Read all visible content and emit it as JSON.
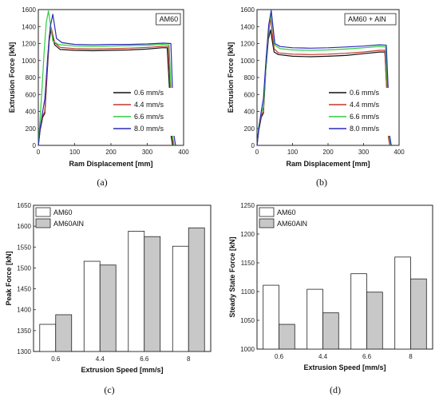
{
  "chart_data": [
    {
      "id": "a",
      "type": "line",
      "caption": "(a)",
      "tag": "AM60",
      "xlabel": "Ram Displacement [mm]",
      "ylabel": "Extrusion Force [kN]",
      "xlim": [
        0,
        400
      ],
      "ylim": [
        0,
        1600
      ],
      "xticks": [
        0,
        100,
        200,
        300,
        400
      ],
      "yticks": [
        0,
        200,
        400,
        600,
        800,
        1000,
        1200,
        1400,
        1600
      ],
      "legend_position": "lower-right",
      "series": [
        {
          "name": "0.6 mm/s",
          "color": "#111111",
          "x": [
            0,
            5,
            12,
            18,
            25,
            30,
            35,
            45,
            60,
            100,
            150,
            200,
            250,
            300,
            340,
            355,
            362,
            366,
            370
          ],
          "y": [
            0,
            180,
            330,
            380,
            900,
            1230,
            1365,
            1185,
            1130,
            1120,
            1115,
            1120,
            1125,
            1135,
            1150,
            1150,
            600,
            100,
            0
          ]
        },
        {
          "name": "4.4 mm/s",
          "color": "#c0392b",
          "x": [
            0,
            5,
            12,
            18,
            25,
            30,
            35,
            45,
            60,
            100,
            150,
            200,
            250,
            300,
            340,
            358,
            364,
            368,
            372
          ],
          "y": [
            0,
            200,
            350,
            400,
            950,
            1280,
            1395,
            1210,
            1155,
            1140,
            1135,
            1140,
            1145,
            1155,
            1165,
            1165,
            600,
            100,
            0
          ]
        },
        {
          "name": "6.6 mm/s",
          "color": "#2ecc40",
          "x": [
            0,
            4,
            10,
            16,
            22,
            28,
            40,
            55,
            100,
            150,
            200,
            250,
            300,
            340,
            360,
            366,
            370,
            374
          ],
          "y": [
            0,
            250,
            650,
            1100,
            1450,
            1585,
            1230,
            1190,
            1170,
            1165,
            1170,
            1175,
            1180,
            1190,
            1185,
            600,
            100,
            0
          ]
        },
        {
          "name": "8.0 mm/s",
          "color": "#2b2bb8",
          "x": [
            0,
            5,
            12,
            18,
            26,
            33,
            40,
            50,
            65,
            100,
            150,
            200,
            250,
            300,
            345,
            365,
            370,
            374,
            378
          ],
          "y": [
            0,
            200,
            400,
            550,
            1050,
            1400,
            1545,
            1260,
            1210,
            1190,
            1185,
            1190,
            1190,
            1195,
            1205,
            1200,
            600,
            100,
            0
          ]
        }
      ]
    },
    {
      "id": "b",
      "type": "line",
      "caption": "(b)",
      "tag": "AM60 + AlN",
      "xlabel": "Ram Displacement [mm]",
      "ylabel": "Extrusion Force [kN]",
      "xlim": [
        0,
        400
      ],
      "ylim": [
        0,
        1600
      ],
      "xticks": [
        0,
        100,
        200,
        300,
        400
      ],
      "yticks": [
        0,
        200,
        400,
        600,
        800,
        1000,
        1200,
        1400,
        1600
      ],
      "legend_position": "lower-right",
      "series": [
        {
          "name": "0.6 mm/s",
          "color": "#111111",
          "x": [
            0,
            5,
            12,
            18,
            25,
            32,
            38,
            48,
            60,
            100,
            150,
            200,
            250,
            300,
            345,
            360,
            366,
            370,
            374
          ],
          "y": [
            0,
            180,
            330,
            380,
            900,
            1250,
            1360,
            1100,
            1070,
            1050,
            1045,
            1050,
            1060,
            1080,
            1100,
            1100,
            600,
            100,
            0
          ]
        },
        {
          "name": "4.4 mm/s",
          "color": "#c0392b",
          "x": [
            0,
            5,
            12,
            18,
            25,
            32,
            38,
            48,
            60,
            100,
            150,
            200,
            250,
            300,
            345,
            360,
            366,
            370,
            374
          ],
          "y": [
            0,
            200,
            350,
            400,
            950,
            1300,
            1500,
            1140,
            1090,
            1075,
            1070,
            1075,
            1085,
            1100,
            1120,
            1120,
            600,
            100,
            0
          ]
        },
        {
          "name": "6.6 mm/s",
          "color": "#2ecc40",
          "x": [
            0,
            5,
            12,
            18,
            26,
            33,
            40,
            50,
            65,
            100,
            150,
            200,
            250,
            300,
            345,
            362,
            368,
            372,
            376
          ],
          "y": [
            0,
            220,
            380,
            450,
            1000,
            1380,
            1560,
            1180,
            1140,
            1125,
            1120,
            1125,
            1135,
            1150,
            1165,
            1160,
            600,
            100,
            0
          ]
        },
        {
          "name": "8.0 mm/s",
          "color": "#2b2bb8",
          "x": [
            0,
            5,
            12,
            18,
            26,
            33,
            40,
            50,
            65,
            100,
            150,
            200,
            250,
            300,
            345,
            364,
            370,
            374,
            378
          ],
          "y": [
            0,
            200,
            400,
            550,
            1050,
            1420,
            1590,
            1200,
            1165,
            1150,
            1145,
            1150,
            1160,
            1170,
            1185,
            1180,
            600,
            100,
            0
          ]
        }
      ]
    },
    {
      "id": "c",
      "type": "bar",
      "caption": "(c)",
      "xlabel": "Extrusion Speed [mm/s]",
      "ylabel": "Peak Force [kN]",
      "ylim": [
        1300,
        1650
      ],
      "yticks": [
        1300,
        1350,
        1400,
        1450,
        1500,
        1550,
        1600,
        1650
      ],
      "categories": [
        "0.6",
        "4.4",
        "6.6",
        "8"
      ],
      "legend_position": "top-left",
      "series": [
        {
          "name": "AM60",
          "color": "#ffffff",
          "values": [
            1365,
            1516,
            1588,
            1552
          ]
        },
        {
          "name": "AM60AlN",
          "color": "#c8c8c8",
          "values": [
            1388,
            1507,
            1575,
            1596
          ]
        }
      ]
    },
    {
      "id": "d",
      "type": "bar",
      "caption": "(d)",
      "xlabel": "Extrusion Speed [mm/s]",
      "ylabel": "Steady State Force [kN]",
      "ylim": [
        1000,
        1250
      ],
      "yticks": [
        1000,
        1050,
        1100,
        1150,
        1200,
        1250
      ],
      "categories": [
        "0.6",
        "4.4",
        "6.6",
        "8"
      ],
      "legend_position": "top-left",
      "series": [
        {
          "name": "AM60",
          "color": "#ffffff",
          "values": [
            1111,
            1104,
            1131,
            1160
          ]
        },
        {
          "name": "AM60AlN",
          "color": "#c8c8c8",
          "values": [
            1043,
            1063,
            1099,
            1122
          ]
        }
      ]
    }
  ]
}
